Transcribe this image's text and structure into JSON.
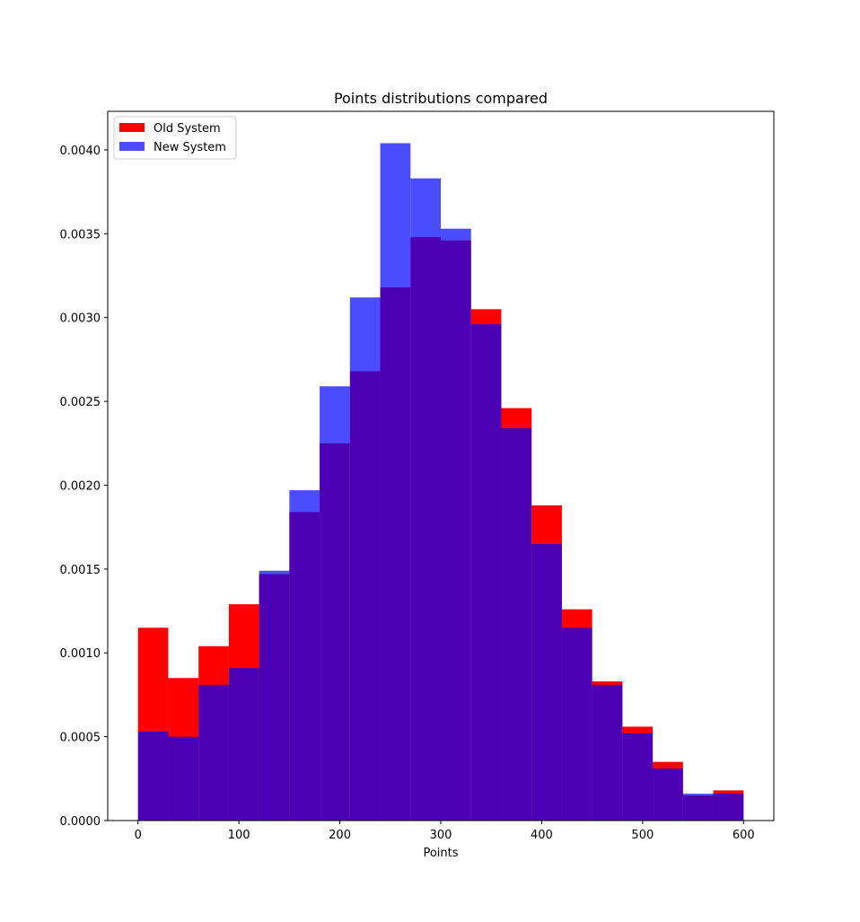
{
  "chart_data": {
    "type": "bar",
    "title": "Points distributions compared",
    "xlabel": "Points",
    "ylabel": "",
    "xlim": [
      -30,
      630
    ],
    "ylim": [
      0,
      0.00423
    ],
    "bin_edges": [
      0,
      30,
      60,
      90,
      120,
      150,
      180,
      210,
      240,
      270,
      300,
      330,
      360,
      390,
      420,
      450,
      480,
      510,
      540,
      570,
      600
    ],
    "x_ticks": [
      0,
      100,
      200,
      300,
      400,
      500,
      600
    ],
    "x_tick_labels": [
      "0",
      "100",
      "200",
      "300",
      "400",
      "500",
      "600"
    ],
    "y_ticks": [
      0,
      0.0005,
      0.001,
      0.0015,
      0.002,
      0.0025,
      0.003,
      0.0035,
      0.004
    ],
    "y_tick_labels": [
      "0.0000",
      "0.0005",
      "0.0010",
      "0.0015",
      "0.0020",
      "0.0025",
      "0.0030",
      "0.0035",
      "0.0040"
    ],
    "legend_position": "top-left",
    "grid": false,
    "series": [
      {
        "name": "Old System",
        "color": "#ff0000",
        "opacity": 1.0,
        "values": [
          0.00115,
          0.00085,
          0.00104,
          0.00129,
          0.00147,
          0.00184,
          0.00225,
          0.00268,
          0.00318,
          0.00348,
          0.00346,
          0.00305,
          0.00246,
          0.00188,
          0.00126,
          0.00083,
          0.00056,
          0.00035,
          0.00015,
          0.00018
        ]
      },
      {
        "name": "New System",
        "color": "#0000ff",
        "opacity": 0.7,
        "values": [
          0.00053,
          0.0005,
          0.00081,
          0.00091,
          0.00149,
          0.00197,
          0.00259,
          0.00312,
          0.00404,
          0.00383,
          0.00353,
          0.00296,
          0.00234,
          0.00165,
          0.00115,
          0.00081,
          0.00052,
          0.00031,
          0.00016,
          0.00016
        ]
      }
    ]
  }
}
